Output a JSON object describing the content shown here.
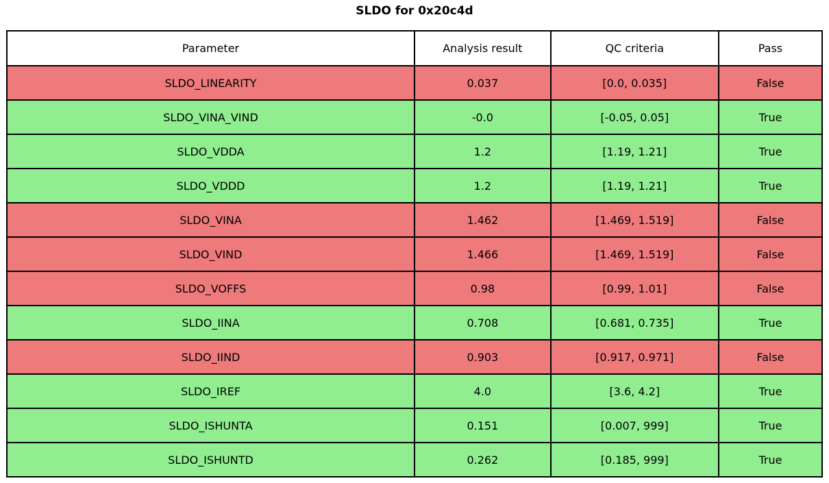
{
  "title": "SLDO for 0x20c4d",
  "colors": {
    "pass_row": "#90ee90",
    "fail_row": "#ee7a7c",
    "header_bg": "#ffffff",
    "border": "#000000",
    "text": "#000000"
  },
  "chart_data": {
    "type": "table",
    "title": "SLDO for 0x20c4d",
    "columns": [
      "Parameter",
      "Analysis result",
      "QC criteria",
      "Pass"
    ],
    "column_width_pct": [
      50.0,
      16.7,
      20.6,
      12.7
    ],
    "rows": [
      {
        "parameter": "SLDO_LINEARITY",
        "result": "0.037",
        "criteria": "[0.0, 0.035]",
        "pass": "False"
      },
      {
        "parameter": "SLDO_VINA_VIND",
        "result": "-0.0",
        "criteria": "[-0.05, 0.05]",
        "pass": "True"
      },
      {
        "parameter": "SLDO_VDDA",
        "result": "1.2",
        "criteria": "[1.19, 1.21]",
        "pass": "True"
      },
      {
        "parameter": "SLDO_VDDD",
        "result": "1.2",
        "criteria": "[1.19, 1.21]",
        "pass": "True"
      },
      {
        "parameter": "SLDO_VINA",
        "result": "1.462",
        "criteria": "[1.469, 1.519]",
        "pass": "False"
      },
      {
        "parameter": "SLDO_VIND",
        "result": "1.466",
        "criteria": "[1.469, 1.519]",
        "pass": "False"
      },
      {
        "parameter": "SLDO_VOFFS",
        "result": "0.98",
        "criteria": "[0.99, 1.01]",
        "pass": "False"
      },
      {
        "parameter": "SLDO_IINA",
        "result": "0.708",
        "criteria": "[0.681, 0.735]",
        "pass": "True"
      },
      {
        "parameter": "SLDO_IIND",
        "result": "0.903",
        "criteria": "[0.917, 0.971]",
        "pass": "False"
      },
      {
        "parameter": "SLDO_IREF",
        "result": "4.0",
        "criteria": "[3.6, 4.2]",
        "pass": "True"
      },
      {
        "parameter": "SLDO_ISHUNTA",
        "result": "0.151",
        "criteria": "[0.007, 999]",
        "pass": "True"
      },
      {
        "parameter": "SLDO_ISHUNTD",
        "result": "0.262",
        "criteria": "[0.185, 999]",
        "pass": "True"
      }
    ]
  }
}
